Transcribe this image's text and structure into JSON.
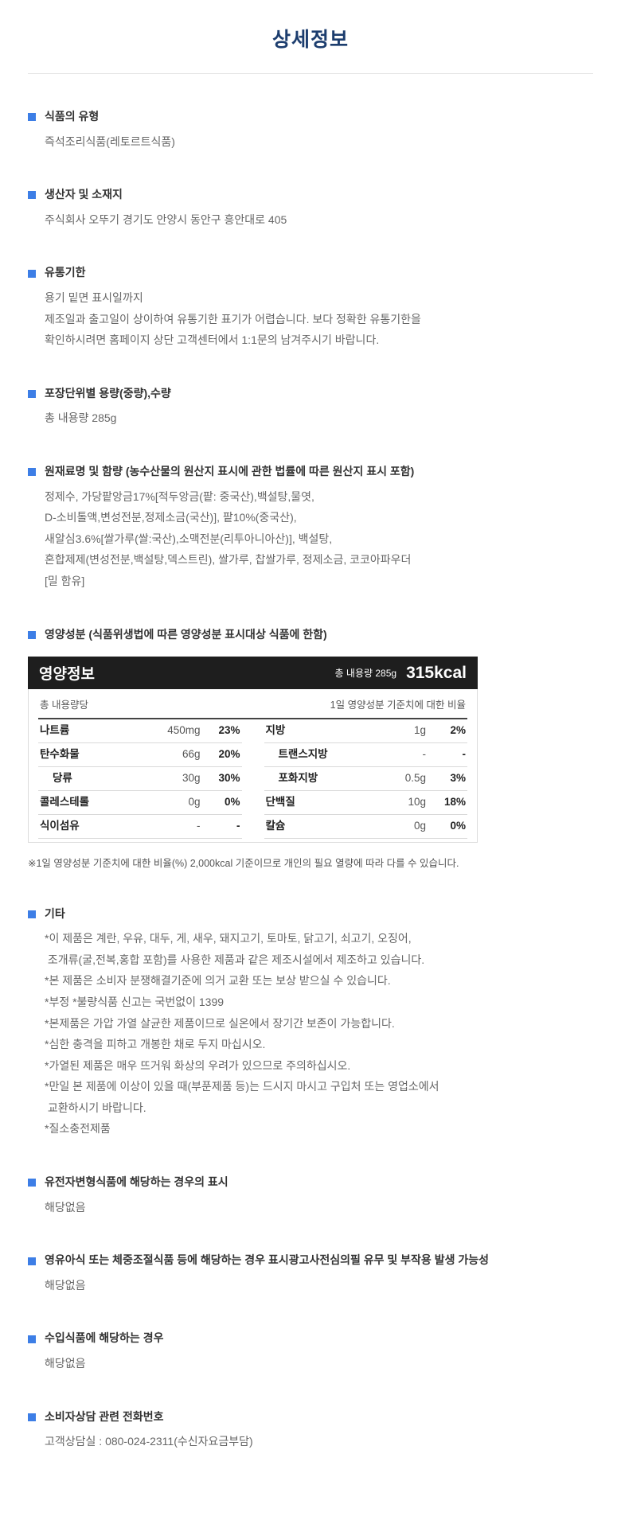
{
  "page": {
    "title": "상세정보"
  },
  "colors": {
    "accent_blue": "#3d7ee6",
    "title_navy": "#1c3d6e",
    "table_header_bg": "#1e1e1e"
  },
  "sections_top": [
    {
      "heading": "식품의 유형",
      "lines": [
        "즉석조리식품(레토르트식품)"
      ]
    },
    {
      "heading": "생산자 및 소재지",
      "lines": [
        "주식회사 오뚜기 경기도 안양시 동안구 흥안대로 405"
      ]
    },
    {
      "heading": "유통기한",
      "lines": [
        "용기 밑면 표시일까지",
        "제조일과 출고일이 상이하여 유통기한 표기가 어렵습니다. 보다 정확한 유통기한을",
        "확인하시려면 홈페이지 상단 고객센터에서 1:1문의 남겨주시기 바랍니다."
      ]
    },
    {
      "heading": "포장단위별 용량(중량),수량",
      "lines": [
        "총 내용량 285g"
      ]
    },
    {
      "heading": "원재료명 및 함량 (농수산물의 원산지 표시에 관한 법률에 따른 원산지 표시 포함)",
      "lines": [
        "정제수, 가당팥앙금17%[적두앙금(팥: 중국산),백설탕,물엿,",
        "D-소비톨액,변성전분,정제소금(국산)], 팥10%(중국산),",
        "새알심3.6%[쌀가루(쌀:국산),소맥전분(리투아니아산)], 백설탕,",
        "혼합제제(변성전분,백설탕,덱스트린), 쌀가루, 찹쌀가루, 정제소금, 코코아파우더",
        "[밀 함유]"
      ]
    }
  ],
  "nutrition": {
    "section_heading": "영양성분 (식품위생법에 따른 영양성분 표시대상 식품에 한함)",
    "header": {
      "title": "영양정보",
      "total": "총 내용량 285g",
      "kcal": "315kcal"
    },
    "subheader": {
      "left": "총 내용량당",
      "right": "1일 영양성분 기준치에 대한 비율"
    },
    "left_rows": [
      {
        "name": "나트륨",
        "value": "450mg",
        "percent": "23%"
      },
      {
        "name": "탄수화물",
        "value": "66g",
        "percent": "20%"
      },
      {
        "name": "당류",
        "value": "30g",
        "percent": "30%"
      },
      {
        "name": "콜레스테롤",
        "value": "0g",
        "percent": "0%"
      },
      {
        "name": "식이섬유",
        "value": "-",
        "percent": "-"
      }
    ],
    "right_rows": [
      {
        "name": "지방",
        "value": "1g",
        "percent": "2%"
      },
      {
        "name": "트랜스지방",
        "value": "-",
        "percent": "-"
      },
      {
        "name": "포화지방",
        "value": "0.5g",
        "percent": "3%"
      },
      {
        "name": "단백질",
        "value": "10g",
        "percent": "18%"
      },
      {
        "name": "칼슘",
        "value": "0g",
        "percent": "0%"
      }
    ],
    "footnote": "※1일 영양성분 기준치에 대한 비율(%) 2,000kcal 기준이므로 개인의 필요 열량에 따라 다를 수 있습니다."
  },
  "sections_bottom": [
    {
      "heading": "기타",
      "lines": [
        "*이 제품은 계란, 우유, 대두, 게, 새우, 돼지고기, 토마토, 닭고기, 쇠고기, 오징어,",
        " 조개류(굴,전복,홍합 포함)를 사용한 제품과 같은 제조시설에서 제조하고 있습니다.",
        "*본 제품은 소비자 분쟁해결기준에 의거 교환 또는 보상 받으실 수 있습니다.",
        "*부정 *불량식품 신고는 국번없이 1399",
        "*본제품은 가압 가열 살균한 제품이므로 실온에서 장기간 보존이 가능합니다.",
        "*심한 충격을 피하고 개봉한 채로 두지 마십시오.",
        "*가열된 제품은 매우 뜨거워 화상의 우려가 있으므로 주의하십시오.",
        "*만일 본 제품에 이상이 있을 때(부푼제품 등)는 드시지 마시고 구입처 또는 영업소에서",
        " 교환하시기 바랍니다.",
        "*질소충전제품"
      ]
    },
    {
      "heading": "유전자변형식품에 해당하는 경우의 표시",
      "lines": [
        "해당없음"
      ]
    },
    {
      "heading": "영유아식 또는 체중조절식품 등에 해당하는 경우 표시광고사전심의필 유무 및 부작용 발생 가능성",
      "lines": [
        "해당없음"
      ]
    },
    {
      "heading": "수입식품에 해당하는 경우",
      "lines": [
        "해당없음"
      ]
    },
    {
      "heading": "소비자상담 관련 전화번호",
      "lines": [
        "고객상담실 : 080-024-2311(수신자요금부담)"
      ]
    }
  ]
}
